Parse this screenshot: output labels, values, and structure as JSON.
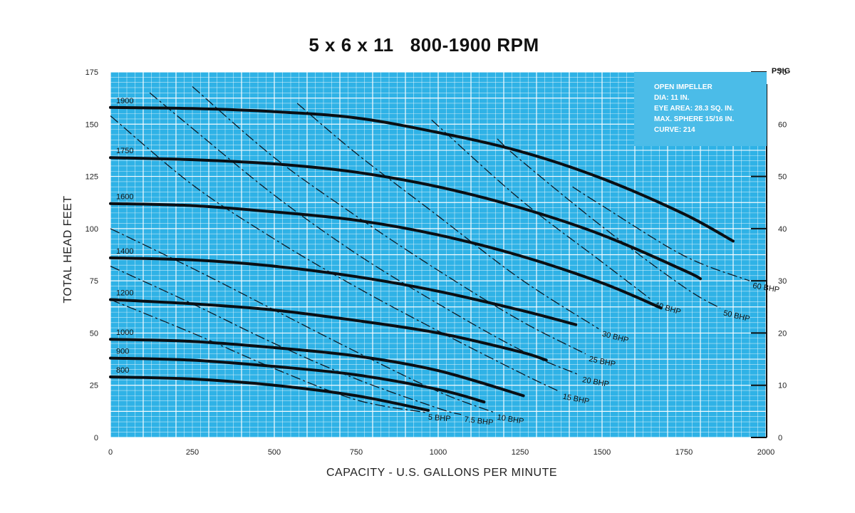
{
  "chart_data": {
    "type": "line",
    "title": "5 x 6 x 11   800-1900 RPM",
    "xlabel": "CAPACITY - U.S. GALLONS PER MINUTE",
    "ylabel": "TOTAL HEAD FEET",
    "y2label": "PSIG",
    "xlim": [
      0,
      2000
    ],
    "ylim": [
      0,
      175
    ],
    "y2lim": [
      0,
      70
    ],
    "x_ticks": [
      0,
      250,
      500,
      750,
      1000,
      1250,
      1500,
      1750,
      2000
    ],
    "y_ticks": [
      0,
      25,
      50,
      75,
      100,
      125,
      150,
      175
    ],
    "y2_ticks": [
      0,
      10,
      20,
      30,
      40,
      50,
      60,
      70
    ],
    "grid": true,
    "info_box": [
      "OPEN IMPELLER",
      "DIA: 11 IN.",
      "EYE AREA: 28.3 SQ. IN.",
      "MAX. SPHERE 15/16 IN.",
      "CURVE: 214"
    ],
    "series": [
      {
        "name": "1900",
        "x": [
          0,
          250,
          500,
          750,
          1000,
          1250,
          1500,
          1750,
          1900
        ],
        "y": [
          158,
          157.5,
          156,
          153,
          146,
          137,
          124,
          107,
          94
        ]
      },
      {
        "name": "1750",
        "x": [
          0,
          250,
          500,
          750,
          1000,
          1250,
          1500,
          1750,
          1800
        ],
        "y": [
          134,
          133,
          131,
          127,
          120,
          110,
          97,
          80,
          76
        ]
      },
      {
        "name": "1600",
        "x": [
          0,
          250,
          500,
          750,
          1000,
          1250,
          1500,
          1680
        ],
        "y": [
          112,
          111,
          108,
          104,
          97,
          87,
          74,
          62
        ]
      },
      {
        "name": "1400",
        "x": [
          0,
          250,
          500,
          750,
          1000,
          1250,
          1420
        ],
        "y": [
          86,
          85,
          82,
          77,
          70,
          61,
          54
        ]
      },
      {
        "name": "1200",
        "x": [
          0,
          250,
          500,
          750,
          1000,
          1250,
          1330
        ],
        "y": [
          66,
          64,
          61,
          56,
          50,
          41,
          37
        ]
      },
      {
        "name": "1000",
        "x": [
          0,
          250,
          500,
          750,
          1000,
          1260
        ],
        "y": [
          47,
          46,
          43,
          39,
          32,
          20
        ]
      },
      {
        "name": "900",
        "x": [
          0,
          250,
          500,
          750,
          1000,
          1140
        ],
        "y": [
          38,
          37,
          34,
          30,
          23,
          17
        ]
      },
      {
        "name": "800",
        "x": [
          0,
          250,
          500,
          750,
          970
        ],
        "y": [
          29,
          28,
          25,
          20,
          13
        ]
      }
    ],
    "bhp_lines": [
      {
        "name": "5 BHP",
        "label": "5 BHP",
        "x": [
          0,
          250,
          500,
          750,
          960
        ],
        "y": [
          66,
          50,
          33,
          18,
          12
        ]
      },
      {
        "name": "7.5 BHP",
        "label": "7.5 BHP",
        "x": [
          0,
          250,
          500,
          750,
          1000,
          1070
        ],
        "y": [
          82,
          64,
          45,
          28,
          14,
          11
        ]
      },
      {
        "name": "10 BHP",
        "label": "10 BHP",
        "x": [
          0,
          250,
          500,
          750,
          1000,
          1170
        ],
        "y": [
          100,
          81,
          61,
          41,
          22,
          12
        ]
      },
      {
        "name": "15 BHP",
        "label": "15 BHP",
        "x": [
          0,
          250,
          500,
          750,
          1000,
          1250,
          1370
        ],
        "y": [
          154,
          121,
          95,
          72,
          51,
          31,
          22
        ]
      },
      {
        "name": "20 BHP",
        "label": "20 BHP",
        "x": [
          120,
          250,
          500,
          750,
          1000,
          1250,
          1430
        ],
        "y": [
          165,
          148,
          116,
          88,
          64,
          42,
          30
        ]
      },
      {
        "name": "25 BHP",
        "label": "25 BHP",
        "x": [
          250,
          500,
          750,
          1000,
          1250,
          1450
        ],
        "y": [
          168,
          134,
          106,
          80,
          56,
          40
        ]
      },
      {
        "name": "30 BHP",
        "label": "30 BHP",
        "x": [
          570,
          750,
          1000,
          1250,
          1490
        ],
        "y": [
          160,
          136,
          106,
          76,
          52
        ]
      },
      {
        "name": "40 BHP",
        "label": "40 BHP",
        "x": [
          980,
          1250,
          1500,
          1650
        ],
        "y": [
          152,
          114,
          84,
          66
        ]
      },
      {
        "name": "50 BHP",
        "label": "50 BHP",
        "x": [
          1180,
          1250,
          1500,
          1750,
          1860
        ],
        "y": [
          143,
          133,
          101,
          72,
          62
        ]
      },
      {
        "name": "60 BHP",
        "label": "60 BHP",
        "x": [
          1410,
          1500,
          1750,
          1950
        ],
        "y": [
          120,
          111,
          87,
          75
        ]
      }
    ]
  }
}
